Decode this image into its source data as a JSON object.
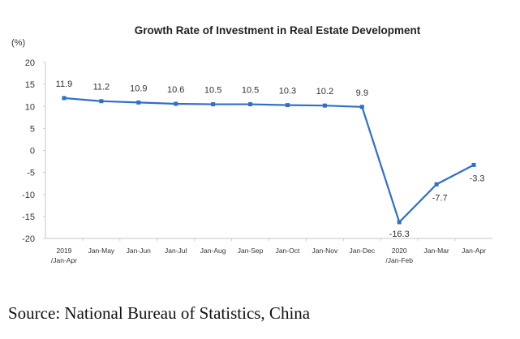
{
  "chart_data": {
    "type": "line",
    "title": "Growth Rate of Investment in Real Estate Development",
    "ylabel": "(%)",
    "xlabel": "",
    "ylim": [
      -20,
      20
    ],
    "yticks": [
      20,
      15,
      10,
      5,
      0,
      -5,
      -10,
      -15,
      -20
    ],
    "grid": false,
    "legend": "none",
    "categories": [
      [
        "2019",
        "/Jan-Apr"
      ],
      [
        "Jan-May"
      ],
      [
        "Jan-Jun"
      ],
      [
        "Jan-Jul"
      ],
      [
        "Jan-Aug"
      ],
      [
        "Jan-Sep"
      ],
      [
        "Jan-Oct"
      ],
      [
        "Jan-Nov"
      ],
      [
        "Jan-Dec"
      ],
      [
        "2020",
        "/Jan-Feb"
      ],
      [
        "Jan-Mar"
      ],
      [
        "Jan-Apr"
      ]
    ],
    "series": [
      {
        "name": "Growth Rate",
        "color": "#2e6fc8",
        "values": [
          11.9,
          11.2,
          10.9,
          10.6,
          10.5,
          10.5,
          10.3,
          10.2,
          9.9,
          -16.3,
          -7.7,
          -3.3
        ],
        "labels": [
          "11.9",
          "11.2",
          "10.9",
          "10.6",
          "10.5",
          "10.5",
          "10.3",
          "10.2",
          "9.9",
          "-16.3",
          "-7.7",
          "-3.3"
        ]
      }
    ]
  },
  "source": "Source: National Bureau of Statistics, China"
}
